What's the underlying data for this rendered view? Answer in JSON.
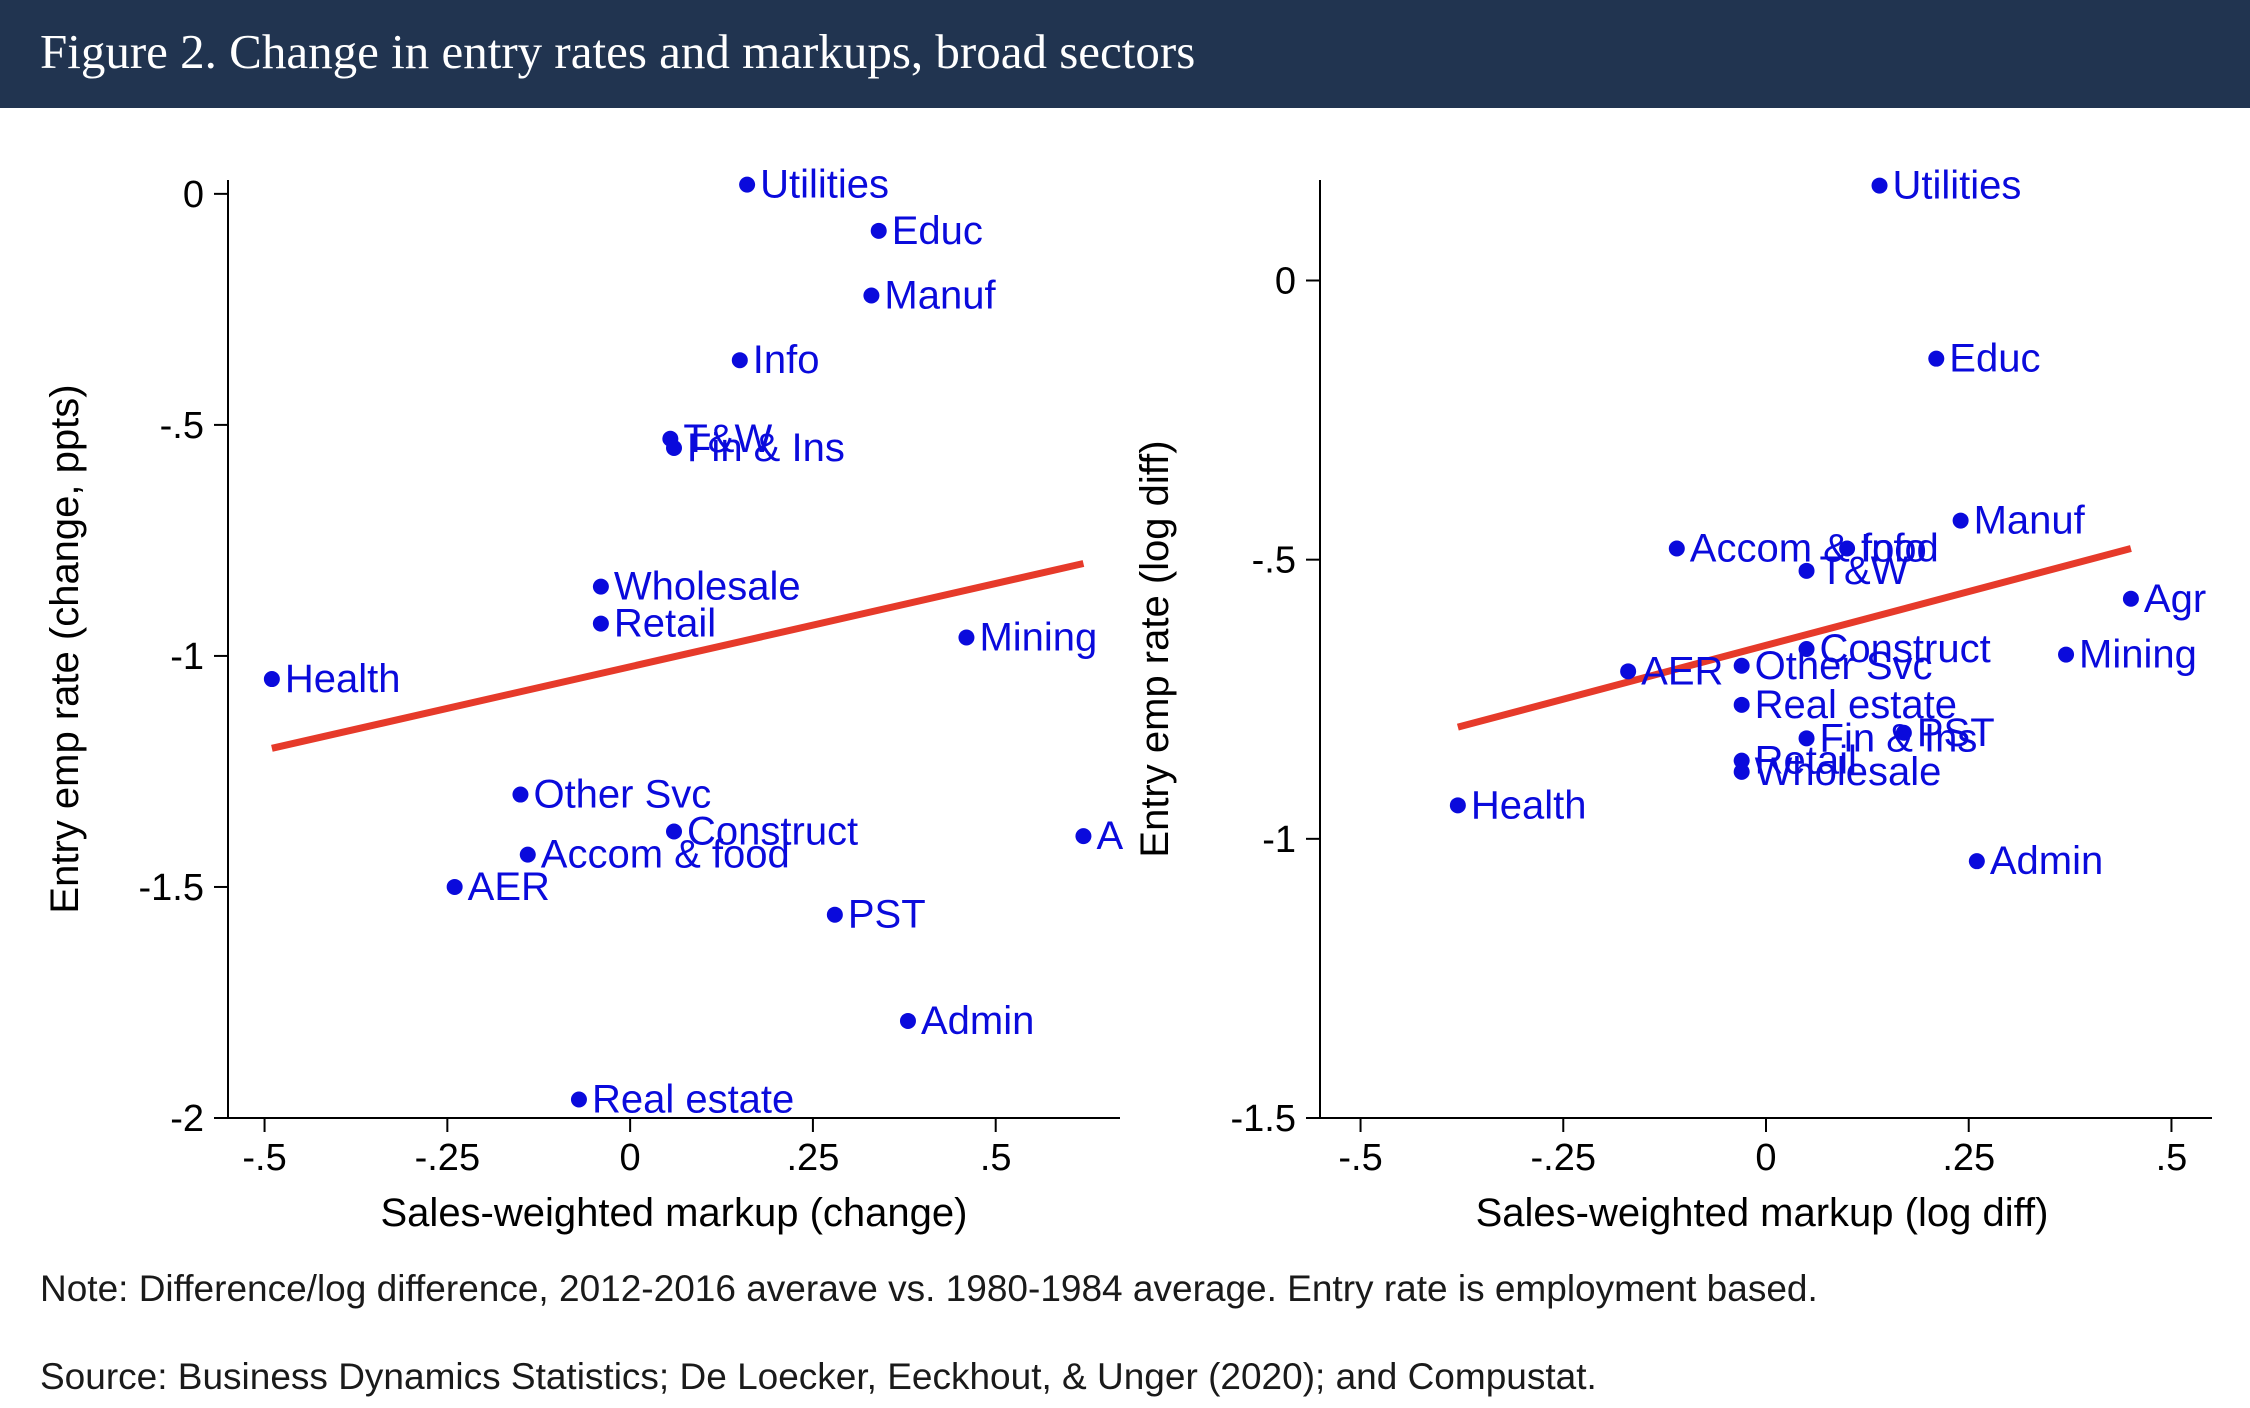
{
  "header": {
    "title": "Figure 2. Change in entry rates and markups, broad sectors"
  },
  "colors": {
    "header_bg": "#213450",
    "points": "#0a0adc",
    "fit_line": "#e63a2a",
    "axis": "#000000"
  },
  "footer": {
    "note": "Note: Difference/log difference, 2012-2016 averave vs. 1980-1984 average. Entry rate is employment based.",
    "source": "Source: Business Dynamics Statistics; De Loecker, Eeckhout, & Unger (2020); and Compustat."
  },
  "chart_data": [
    {
      "type": "scatter",
      "xlabel": "Sales-weighted markup (change)",
      "ylabel": "Entry emp rate (change, ppts)",
      "xlim": [
        -0.55,
        0.67
      ],
      "ylim": [
        -2.0,
        0.03
      ],
      "xticks": [
        -0.5,
        -0.25,
        0,
        0.25,
        0.5
      ],
      "xtick_labels": [
        "-.5",
        "-.25",
        "0",
        ".25",
        ".5"
      ],
      "yticks": [
        0,
        -0.5,
        -1,
        -1.5,
        -2
      ],
      "ytick_labels": [
        "0",
        "-.5",
        "-1",
        "-1.5",
        "-2"
      ],
      "fit_line": {
        "x": [
          -0.49,
          0.62
        ],
        "y": [
          -1.2,
          -0.8
        ]
      },
      "points": [
        {
          "label": "Utilities",
          "x": 0.16,
          "y": 0.02
        },
        {
          "label": "Educ",
          "x": 0.34,
          "y": -0.08
        },
        {
          "label": "Manuf",
          "x": 0.33,
          "y": -0.22
        },
        {
          "label": "Info",
          "x": 0.15,
          "y": -0.36
        },
        {
          "label": "T&W",
          "x": 0.055,
          "y": -0.53
        },
        {
          "label": "Fin & Ins",
          "x": 0.06,
          "y": -0.55
        },
        {
          "label": "Wholesale",
          "x": -0.04,
          "y": -0.85
        },
        {
          "label": "Retail",
          "x": -0.04,
          "y": -0.93
        },
        {
          "label": "Mining",
          "x": 0.46,
          "y": -0.96
        },
        {
          "label": "Health",
          "x": -0.49,
          "y": -1.05
        },
        {
          "label": "Other Svc",
          "x": -0.15,
          "y": -1.3
        },
        {
          "label": "Construct",
          "x": 0.06,
          "y": -1.38
        },
        {
          "label": "Accom & food",
          "x": -0.14,
          "y": -1.43
        },
        {
          "label": "A",
          "x": 0.62,
          "y": -1.39
        },
        {
          "label": "AER",
          "x": -0.24,
          "y": -1.5
        },
        {
          "label": "PST",
          "x": 0.28,
          "y": -1.56
        },
        {
          "label": "Admin",
          "x": 0.38,
          "y": -1.79
        },
        {
          "label": "Real estate",
          "x": -0.07,
          "y": -1.96
        }
      ]
    },
    {
      "type": "scatter",
      "xlabel": "Sales-weighted markup (log diff)",
      "ylabel": "Entry emp rate (log diff)",
      "xlim": [
        -0.55,
        0.55
      ],
      "ylim": [
        -1.5,
        0.18
      ],
      "xticks": [
        -0.5,
        -0.25,
        0,
        0.25,
        0.5
      ],
      "xtick_labels": [
        "-.5",
        "-.25",
        "0",
        ".25",
        ".5"
      ],
      "yticks": [
        0,
        -0.5,
        -1,
        -1.5
      ],
      "ytick_labels": [
        "0",
        "-.5",
        "-1",
        "-1.5"
      ],
      "fit_line": {
        "x": [
          -0.38,
          0.45
        ],
        "y": [
          -0.8,
          -0.48
        ]
      },
      "points": [
        {
          "label": "Utilities",
          "x": 0.14,
          "y": 0.17
        },
        {
          "label": "Educ",
          "x": 0.21,
          "y": -0.14
        },
        {
          "label": "Manuf",
          "x": 0.24,
          "y": -0.43
        },
        {
          "label": "Accom & food",
          "x": -0.11,
          "y": -0.48
        },
        {
          "label": "Info",
          "x": 0.1,
          "y": -0.48
        },
        {
          "label": "T&W",
          "x": 0.05,
          "y": -0.52
        },
        {
          "label": "Agr",
          "x": 0.45,
          "y": -0.57
        },
        {
          "label": "Construct",
          "x": 0.05,
          "y": -0.66
        },
        {
          "label": "Mining",
          "x": 0.37,
          "y": -0.67
        },
        {
          "label": "AER",
          "x": -0.17,
          "y": -0.7
        },
        {
          "label": "Other Svc",
          "x": -0.03,
          "y": -0.69
        },
        {
          "label": "Real estate",
          "x": -0.03,
          "y": -0.76
        },
        {
          "label": "PST",
          "x": 0.17,
          "y": -0.81
        },
        {
          "label": "Fin & Ins",
          "x": 0.05,
          "y": -0.82
        },
        {
          "label": "Retail",
          "x": -0.03,
          "y": -0.86
        },
        {
          "label": "Wholesale",
          "x": -0.03,
          "y": -0.88
        },
        {
          "label": "Health",
          "x": -0.38,
          "y": -0.94
        },
        {
          "label": "Admin",
          "x": 0.26,
          "y": -1.04
        }
      ]
    }
  ]
}
